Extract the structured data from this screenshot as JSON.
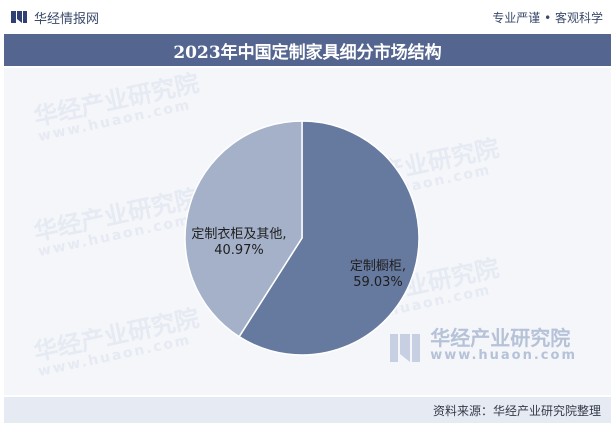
{
  "header": {
    "brand_name": "华经情报网",
    "slogan": "专业严谨 • 客观科学"
  },
  "watermark": {
    "text": "华经产业研究院",
    "url": "www.huaon.com"
  },
  "chart_data": {
    "type": "pie",
    "title": "2023年中国定制家具细分市场结构",
    "labels": [
      "定制橱柜,",
      "定制衣柜及其他,"
    ],
    "values": [
      59.03,
      40.97
    ],
    "value_labels": [
      "59.03%",
      "40.97%"
    ],
    "colors": [
      "#66799f",
      "#a4b1c8"
    ],
    "legend": "none"
  },
  "footer": {
    "source": "资料来源：华经产业研究院整理"
  }
}
